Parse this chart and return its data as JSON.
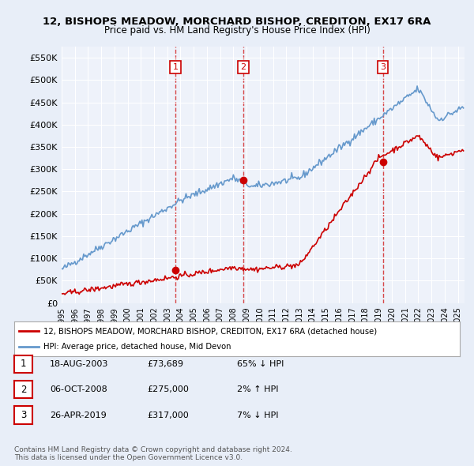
{
  "title_line1": "12, BISHOPS MEADOW, MORCHARD BISHOP, CREDITON, EX17 6RA",
  "title_line2": "Price paid vs. HM Land Registry's House Price Index (HPI)",
  "ylabel": "",
  "xlim_start": 1995.0,
  "xlim_end": 2025.5,
  "ylim": [
    0,
    575000
  ],
  "yticks": [
    0,
    50000,
    100000,
    150000,
    200000,
    250000,
    300000,
    350000,
    400000,
    450000,
    500000,
    550000
  ],
  "ytick_labels": [
    "£0",
    "£50K",
    "£100K",
    "£150K",
    "£200K",
    "£250K",
    "£300K",
    "£350K",
    "£400K",
    "£450K",
    "£500K",
    "£550K"
  ],
  "sale_dates": [
    2003.63,
    2008.76,
    2019.32
  ],
  "sale_prices": [
    73689,
    275000,
    317000
  ],
  "sale_labels": [
    "1",
    "2",
    "3"
  ],
  "sale_color": "#cc0000",
  "hpi_color": "#6699cc",
  "legend_entry1": "12, BISHOPS MEADOW, MORCHARD BISHOP, CREDITON, EX17 6RA (detached house)",
  "legend_entry2": "HPI: Average price, detached house, Mid Devon",
  "table_rows": [
    {
      "num": "1",
      "date": "18-AUG-2003",
      "price": "£73,689",
      "hpi": "65% ↓ HPI"
    },
    {
      "num": "2",
      "date": "06-OCT-2008",
      "price": "£275,000",
      "hpi": "2% ↑ HPI"
    },
    {
      "num": "3",
      "date": "26-APR-2019",
      "price": "£317,000",
      "hpi": "7% ↓ HPI"
    }
  ],
  "footer": "Contains HM Land Registry data © Crown copyright and database right 2024.\nThis data is licensed under the Open Government Licence v3.0.",
  "bg_color": "#e8eef8",
  "plot_bg_color": "#eef2fa"
}
